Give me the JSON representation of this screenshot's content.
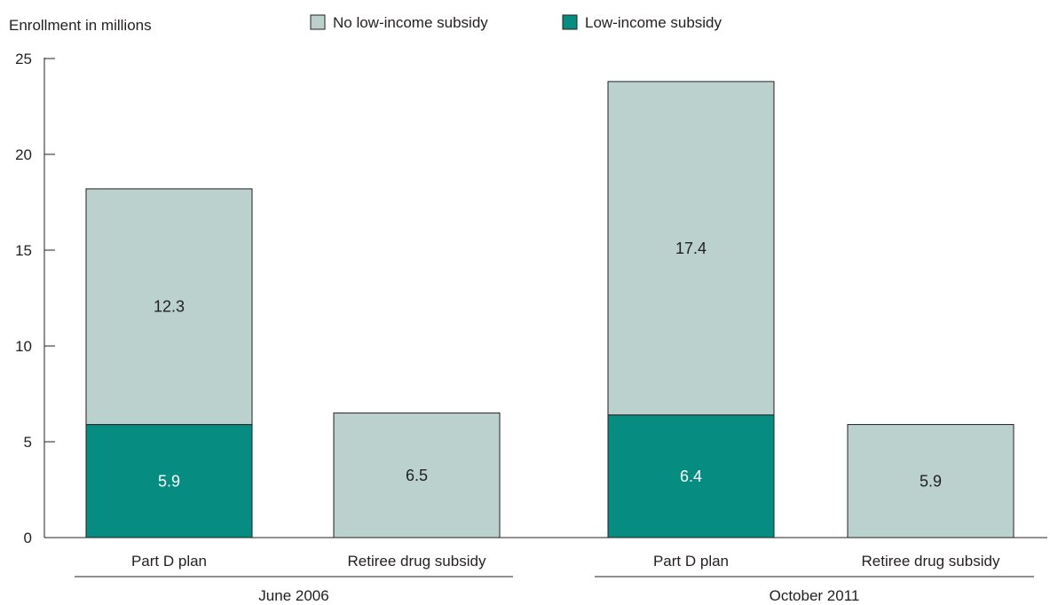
{
  "chart_data": {
    "type": "bar",
    "stacked": true,
    "ylabel": "Enrollment in millions",
    "ylim": [
      0,
      25
    ],
    "yticks": [
      0,
      5,
      10,
      15,
      20,
      25
    ],
    "grid": false,
    "legend_position": "top-center",
    "groups": [
      {
        "label": "June 2006",
        "categories": [
          "Part D plan",
          "Retiree drug subsidy"
        ]
      },
      {
        "label": "October 2011",
        "categories": [
          "Part D plan",
          "Retiree drug subsidy"
        ]
      }
    ],
    "categories": [
      "Part D plan",
      "Retiree drug subsidy",
      "Part D plan",
      "Retiree drug subsidy"
    ],
    "series": [
      {
        "name": "Low-income subsidy",
        "color": "#068c80",
        "values": [
          5.9,
          0,
          6.4,
          0
        ],
        "labels": [
          "5.9",
          "",
          "6.4",
          ""
        ]
      },
      {
        "name": "No low-income subsidy",
        "color": "#bad1cd",
        "values": [
          12.3,
          6.5,
          17.4,
          5.9
        ],
        "labels": [
          "12.3",
          "6.5",
          "17.4",
          "5.9"
        ]
      }
    ],
    "legend_order": [
      1,
      0
    ]
  }
}
